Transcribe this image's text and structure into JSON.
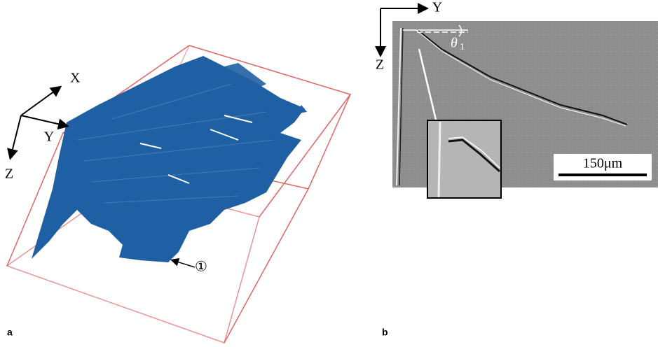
{
  "panel_a": {
    "label": "a",
    "axes": {
      "x": "X",
      "y": "Y",
      "z": "Z"
    },
    "marker": "①"
  },
  "panel_b": {
    "label": "b",
    "axes": {
      "y": "Y",
      "z": "Z"
    },
    "angle": {
      "symbol": "θ",
      "subscript": "1"
    },
    "scale_bar": "150μm"
  }
}
